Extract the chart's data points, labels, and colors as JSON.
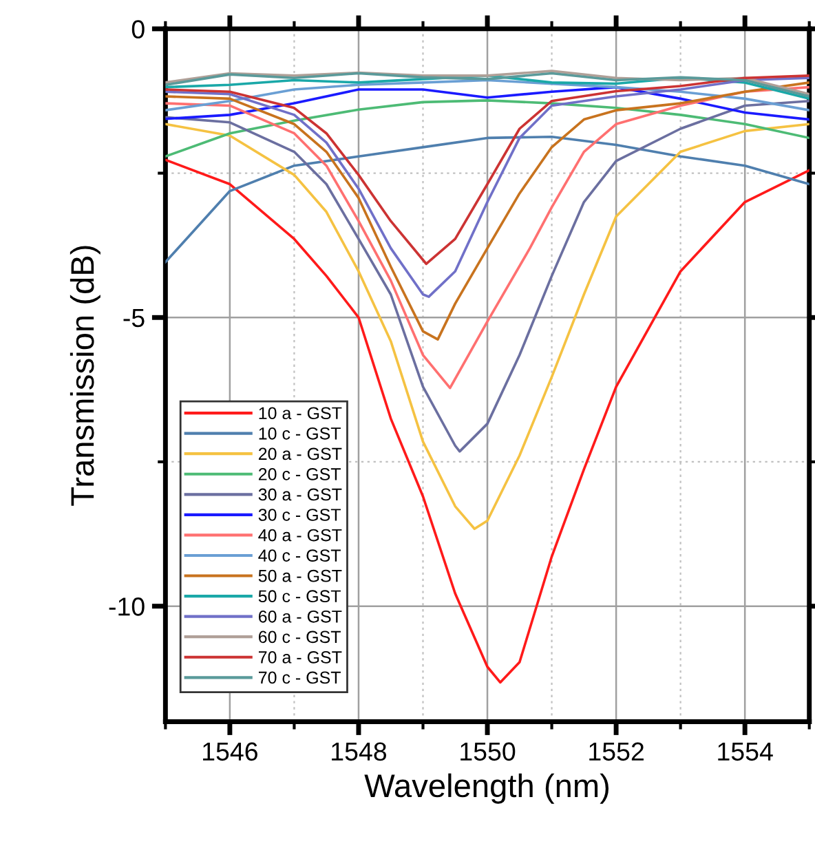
{
  "chart_data": {
    "type": "line",
    "xlabel": "Wavelength (nm)",
    "ylabel": "Transmission (dB)",
    "xlim": [
      1545,
      1555
    ],
    "ylim": [
      -12,
      0
    ],
    "xticks": [
      {
        "value": 1545,
        "label": null
      },
      1546,
      {
        "value": 1547,
        "label": null
      },
      1548,
      {
        "value": 1549,
        "label": null
      },
      1550,
      {
        "value": 1551,
        "label": null
      },
      1552,
      {
        "value": 1553,
        "label": null
      },
      1554,
      {
        "value": 1555,
        "label": null
      }
    ],
    "yticks": [
      {
        "value": -10,
        "label": "-10"
      },
      {
        "value": -7.5,
        "label": null
      },
      {
        "value": -5,
        "label": "-5"
      },
      {
        "value": -2.5,
        "label": null
      },
      0
    ],
    "grid": true,
    "legend": "bottom left",
    "marker": "none",
    "line_style": "solid",
    "series": [
      {
        "name": "10 a - GST",
        "color": "#ff1a1a",
        "x": [
          1545,
          1546,
          1547,
          1547.5,
          1548,
          1548.5,
          1549,
          1549.5,
          1550,
          1550.2,
          1550.5,
          1551,
          1551.5,
          1552,
          1553,
          1554,
          1555
        ],
        "values": [
          -2.27,
          -2.69,
          -3.64,
          -4.28,
          -5.0,
          -6.75,
          -8.1,
          -9.78,
          -11.05,
          -11.32,
          -10.97,
          -9.14,
          -7.63,
          -6.2,
          -4.2,
          -3.0,
          -2.45
        ]
      },
      {
        "name": "10 c - GST",
        "color": "#4f7fae",
        "x": [
          1545,
          1546,
          1547,
          1548,
          1549,
          1550,
          1551,
          1552,
          1553,
          1554,
          1555
        ],
        "values": [
          -4.04,
          -2.81,
          -2.37,
          -2.21,
          -2.05,
          -1.89,
          -1.87,
          -2.01,
          -2.21,
          -2.37,
          -2.69
        ]
      },
      {
        "name": "20 a - GST",
        "color": "#f5c242",
        "x": [
          1545,
          1546,
          1547,
          1547.5,
          1548,
          1548.5,
          1549,
          1549.5,
          1549.8,
          1550,
          1550.5,
          1551,
          1551.5,
          1552,
          1553,
          1554,
          1555
        ],
        "values": [
          -1.65,
          -1.85,
          -2.53,
          -3.17,
          -4.2,
          -5.41,
          -7.15,
          -8.27,
          -8.66,
          -8.52,
          -7.39,
          -6.03,
          -4.6,
          -3.25,
          -2.13,
          -1.77,
          -1.65
        ]
      },
      {
        "name": "20 c - GST",
        "color": "#4dbb75",
        "x": [
          1545,
          1546,
          1547,
          1548,
          1549,
          1550,
          1551,
          1552,
          1553,
          1554,
          1555
        ],
        "values": [
          -2.21,
          -1.81,
          -1.59,
          -1.4,
          -1.27,
          -1.24,
          -1.29,
          -1.37,
          -1.49,
          -1.65,
          -1.89
        ]
      },
      {
        "name": "30 a - GST",
        "color": "#6b6fa0",
        "x": [
          1545,
          1546,
          1547,
          1547.5,
          1548,
          1548.5,
          1549,
          1549.5,
          1549.57,
          1550,
          1550.5,
          1551,
          1551.5,
          1552,
          1553,
          1554,
          1555
        ],
        "values": [
          -1.53,
          -1.62,
          -2.13,
          -2.69,
          -3.64,
          -4.6,
          -6.2,
          -7.22,
          -7.32,
          -6.84,
          -5.65,
          -4.28,
          -3.0,
          -2.29,
          -1.73,
          -1.33,
          -1.25
        ]
      },
      {
        "name": "30 c - GST",
        "color": "#1a1aff",
        "x": [
          1545,
          1546,
          1547,
          1548,
          1549,
          1550,
          1551,
          1552,
          1553,
          1554,
          1555
        ],
        "values": [
          -1.56,
          -1.49,
          -1.29,
          -1.05,
          -1.05,
          -1.19,
          -1.09,
          -1.01,
          -1.21,
          -1.45,
          -1.57
        ]
      },
      {
        "name": "40 a - GST",
        "color": "#ff7070",
        "x": [
          1545,
          1546,
          1547,
          1547.5,
          1548,
          1548.5,
          1549,
          1549.42,
          1550,
          1550.66,
          1551,
          1551.5,
          1552,
          1553,
          1554,
          1555
        ],
        "values": [
          -1.29,
          -1.33,
          -1.81,
          -2.37,
          -3.33,
          -4.36,
          -5.65,
          -6.22,
          -5.07,
          -3.8,
          -3.09,
          -2.13,
          -1.65,
          -1.33,
          -1.09,
          -1.01
        ]
      },
      {
        "name": "40 c - GST",
        "color": "#6a9fd4",
        "x": [
          1545,
          1546,
          1547,
          1548,
          1549,
          1550,
          1551,
          1552,
          1553,
          1554,
          1555
        ],
        "values": [
          -1.41,
          -1.25,
          -1.05,
          -0.97,
          -0.93,
          -0.89,
          -0.95,
          -1.01,
          -1.09,
          -1.21,
          -1.41
        ]
      },
      {
        "name": "50 a - GST",
        "color": "#c8731e",
        "x": [
          1545,
          1546,
          1547,
          1547.5,
          1548,
          1548.5,
          1549,
          1549.23,
          1549.5,
          1550,
          1550.5,
          1551,
          1551.5,
          1552,
          1553,
          1554,
          1555
        ],
        "values": [
          -1.17,
          -1.21,
          -1.65,
          -2.13,
          -2.93,
          -4.12,
          -5.24,
          -5.38,
          -4.76,
          -3.8,
          -2.85,
          -2.05,
          -1.57,
          -1.41,
          -1.29,
          -1.09,
          -0.93
        ]
      },
      {
        "name": "50 c - GST",
        "color": "#1aa8a8",
        "x": [
          1545,
          1546,
          1547,
          1548,
          1549,
          1550,
          1551,
          1552,
          1553,
          1554,
          1555
        ],
        "values": [
          -1.01,
          -0.97,
          -0.89,
          -0.93,
          -0.87,
          -0.81,
          -0.93,
          -0.95,
          -0.85,
          -0.93,
          -1.21
        ]
      },
      {
        "name": "60 a - GST",
        "color": "#7070c8",
        "x": [
          1545,
          1546,
          1547,
          1547.5,
          1548,
          1548.5,
          1549,
          1549.09,
          1549.5,
          1550,
          1550.5,
          1551,
          1552,
          1553,
          1554,
          1555
        ],
        "values": [
          -1.09,
          -1.13,
          -1.49,
          -1.97,
          -2.77,
          -3.8,
          -4.6,
          -4.64,
          -4.2,
          -3.0,
          -1.89,
          -1.33,
          -1.17,
          -1.05,
          -0.89,
          -0.85
        ]
      },
      {
        "name": "60 c - GST",
        "color": "#b0a098",
        "x": [
          1545,
          1546,
          1547,
          1548,
          1549,
          1550,
          1551,
          1552,
          1553,
          1554,
          1555
        ],
        "values": [
          -0.93,
          -0.77,
          -0.81,
          -0.76,
          -0.81,
          -0.81,
          -0.73,
          -0.85,
          -0.89,
          -0.85,
          -1.13
        ]
      },
      {
        "name": "70 a - GST",
        "color": "#cc3333",
        "x": [
          1545,
          1546,
          1547,
          1547.5,
          1548,
          1548.5,
          1549.05,
          1549.5,
          1550,
          1550.5,
          1551,
          1552,
          1553,
          1554,
          1555
        ],
        "values": [
          -1.05,
          -1.09,
          -1.37,
          -1.81,
          -2.53,
          -3.33,
          -4.07,
          -3.64,
          -2.69,
          -1.73,
          -1.25,
          -1.08,
          -0.99,
          -0.85,
          -0.81
        ]
      },
      {
        "name": "70 c - GST",
        "color": "#5a9a9a",
        "x": [
          1545,
          1546,
          1547,
          1548,
          1549,
          1550,
          1551,
          1552,
          1553,
          1554,
          1555
        ],
        "values": [
          -0.97,
          -0.79,
          -0.85,
          -0.77,
          -0.84,
          -0.87,
          -0.77,
          -0.89,
          -0.84,
          -0.89,
          -1.17
        ]
      }
    ]
  }
}
